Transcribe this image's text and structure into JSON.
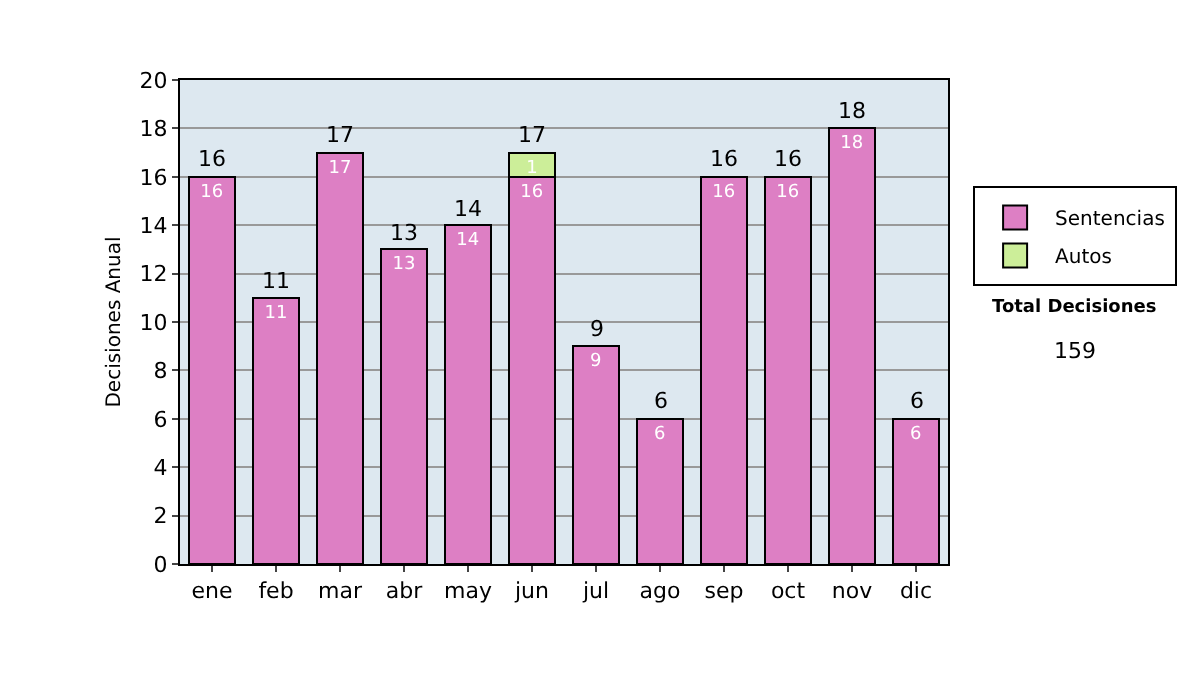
{
  "chart_data": {
    "type": "bar",
    "stacked": true,
    "ylabel": "Decisiones Anual",
    "categories": [
      "ene",
      "feb",
      "mar",
      "abr",
      "may",
      "jun",
      "jul",
      "ago",
      "sep",
      "oct",
      "nov",
      "dic"
    ],
    "series": [
      {
        "name": "Sentencias",
        "color": "#dd7fc4",
        "values": [
          16,
          11,
          17,
          13,
          14,
          16,
          9,
          6,
          16,
          16,
          18,
          6
        ]
      },
      {
        "name": "Autos",
        "color": "#ccee99",
        "values": [
          null,
          null,
          null,
          null,
          null,
          1,
          null,
          null,
          null,
          null,
          null,
          null
        ]
      }
    ],
    "totals": [
      "16",
      "11",
      "17",
      "13",
      "14",
      "17",
      "9",
      "6",
      "16",
      "16",
      "18",
      "6"
    ],
    "data_labels": true,
    "ylim": [
      0,
      20
    ],
    "yticks": [
      0,
      2,
      4,
      6,
      8,
      10,
      12,
      14,
      16,
      18,
      20
    ],
    "grid": "y",
    "legend": "right",
    "annotations": [
      "Total Decisiones",
      "159"
    ]
  }
}
